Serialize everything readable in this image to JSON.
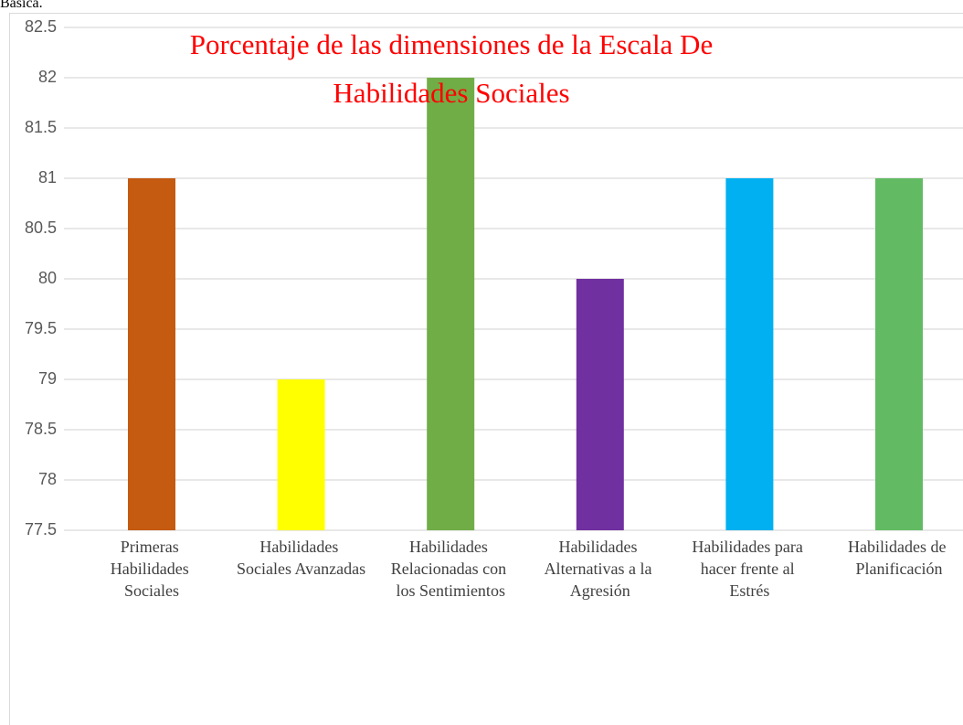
{
  "page_text": "Básica.",
  "chart_data": {
    "type": "bar",
    "title": [
      "Porcentaje de las dimensiones de la Escala De",
      "Habilidades Sociales"
    ],
    "categories": [
      "Primeras Habilidades Sociales",
      "Habilidades Sociales Avanzadas",
      "Habilidades Relacionadas con los Sentimientos",
      "Habilidades Alternativas a la Agresión",
      "Habilidades para hacer frente al Estrés",
      "Habilidades de Planificación"
    ],
    "values": [
      81,
      79,
      82,
      80,
      81,
      81
    ],
    "colors": [
      "#c55a11",
      "#ffff00",
      "#70ad47",
      "#7030a0",
      "#00b0f0",
      "#62bb63"
    ],
    "ylim": [
      77.5,
      82.5
    ],
    "yticks": [
      77.5,
      78,
      78.5,
      79,
      79.5,
      80,
      80.5,
      81,
      81.5,
      82,
      82.5
    ],
    "grid": true
  }
}
